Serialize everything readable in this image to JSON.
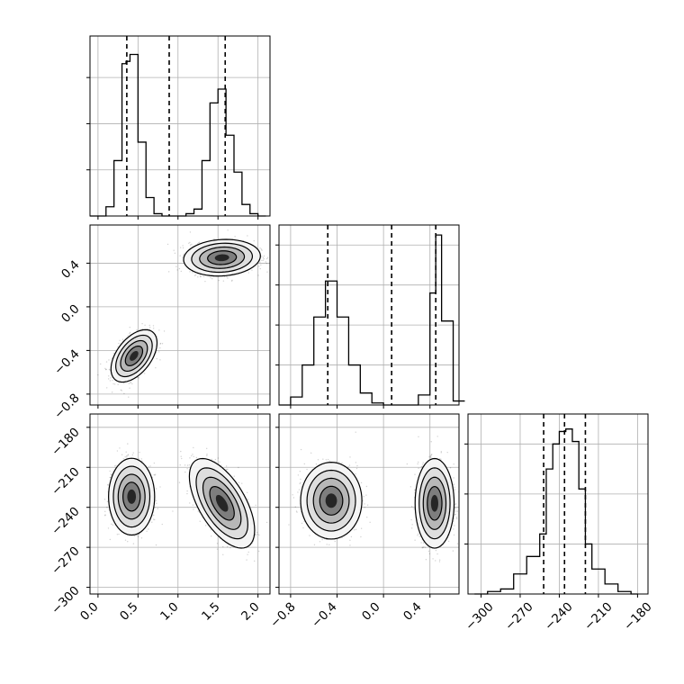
{
  "chart_data": [
    {
      "type": "histogram",
      "panel": "0,0",
      "variable": 0,
      "bins": [
        -0.1,
        0.0,
        0.1,
        0.2,
        0.3,
        0.35,
        0.4,
        0.5,
        0.6,
        0.7,
        0.8,
        0.9,
        1.0,
        1.1,
        1.2,
        1.3,
        1.4,
        1.5,
        1.6,
        1.7,
        1.8,
        1.9,
        2.0,
        2.1
      ],
      "counts": [
        0,
        0,
        4,
        24,
        66,
        67,
        70,
        32,
        8,
        1,
        0,
        0,
        0,
        1,
        3,
        24,
        49,
        55,
        35,
        19,
        5,
        1,
        0
      ],
      "quantiles": [
        0.36,
        0.89,
        1.59
      ],
      "xlim": [
        -0.1,
        2.15
      ],
      "ylim": [
        0,
        78
      ],
      "ygrid_values": [
        20,
        40,
        60
      ],
      "grid": true
    },
    {
      "type": "scatter_density",
      "panel": "1,0",
      "x_variable": 0,
      "y_variable": 1,
      "clusters": [
        {
          "center": [
            0.45,
            -0.45
          ],
          "sd": [
            0.12,
            0.1
          ],
          "rho": 0.5
        },
        {
          "center": [
            1.55,
            0.45
          ],
          "sd": [
            0.2,
            0.07
          ],
          "rho": 0.1
        }
      ],
      "xlim": [
        -0.1,
        2.15
      ],
      "ylim": [
        -0.9,
        0.75
      ],
      "yticks": [
        0.4,
        0.0,
        -0.4,
        -0.8
      ],
      "ytick_labels": [
        "0.4",
        "0.0",
        "−0.4",
        "−0.8"
      ],
      "grid": true
    },
    {
      "type": "histogram",
      "panel": "1,1",
      "variable": 1,
      "bins": [
        -0.9,
        -0.8,
        -0.7,
        -0.6,
        -0.5,
        -0.45,
        -0.4,
        -0.3,
        -0.2,
        -0.1,
        0.0,
        0.1,
        0.2,
        0.3,
        0.4,
        0.45,
        0.5,
        0.6,
        0.7
      ],
      "counts": [
        0,
        4,
        20,
        44,
        62,
        62,
        44,
        20,
        6,
        1,
        0,
        0,
        0,
        5,
        56,
        85,
        42,
        2
      ],
      "quantiles": [
        -0.48,
        0.07,
        0.45
      ],
      "xlim": [
        -0.9,
        0.65
      ],
      "ylim": [
        0,
        90
      ],
      "ygrid_values": [
        20,
        40,
        60,
        80
      ],
      "grid": true
    },
    {
      "type": "scatter_density",
      "panel": "2,0",
      "x_variable": 0,
      "y_variable": 2,
      "clusters": [
        {
          "center": [
            0.42,
            -232
          ],
          "sd": [
            0.12,
            12
          ],
          "rho": 0.0
        },
        {
          "center": [
            1.55,
            -237
          ],
          "sd": [
            0.17,
            14
          ],
          "rho": -0.6
        }
      ],
      "xlim": [
        -0.1,
        2.15
      ],
      "ylim": [
        -305,
        -170
      ],
      "yticks": [
        -180,
        -210,
        -240,
        -270,
        -300
      ],
      "ytick_labels": [
        "−180",
        "−210",
        "−240",
        "−270",
        "−300"
      ],
      "xticks": [
        0.0,
        0.5,
        1.0,
        1.5,
        2.0
      ],
      "xtick_labels": [
        "0.0",
        "0.5",
        "1.0",
        "1.5",
        "2.0"
      ],
      "grid": true
    },
    {
      "type": "scatter_density",
      "panel": "2,1",
      "x_variable": 1,
      "y_variable": 2,
      "clusters": [
        {
          "center": [
            -0.45,
            -235
          ],
          "sd": [
            0.11,
            12
          ],
          "rho": 0.0
        },
        {
          "center": [
            0.44,
            -237
          ],
          "sd": [
            0.07,
            14
          ],
          "rho": 0.0
        }
      ],
      "xlim": [
        -0.9,
        0.65
      ],
      "ylim": [
        -305,
        -170
      ],
      "xticks": [
        -0.8,
        -0.4,
        0.0,
        0.4
      ],
      "xtick_labels": [
        "−0.8",
        "−0.4",
        "0.0",
        "0.4"
      ],
      "grid": true
    },
    {
      "type": "histogram",
      "panel": "2,2",
      "variable": 2,
      "bins": [
        -305,
        -295,
        -285,
        -275,
        -265,
        -255,
        -250,
        -245,
        -240,
        -235,
        -230,
        -225,
        -220,
        -215,
        -205,
        -195,
        -185,
        -180
      ],
      "counts": [
        0,
        1,
        2,
        8,
        15,
        24,
        50,
        60,
        65,
        66,
        61,
        42,
        20,
        10,
        4,
        1,
        0
      ],
      "quantiles": [
        -252,
        -236,
        -220
      ],
      "xlim": [
        -310,
        -172
      ],
      "ylim": [
        0,
        72
      ],
      "ygrid_values": [
        20,
        40,
        60
      ],
      "xticks": [
        -300,
        -270,
        -240,
        -210,
        -180
      ],
      "xtick_labels": [
        "−300",
        "−270",
        "−240",
        "−210",
        "−180"
      ],
      "grid": true
    }
  ]
}
